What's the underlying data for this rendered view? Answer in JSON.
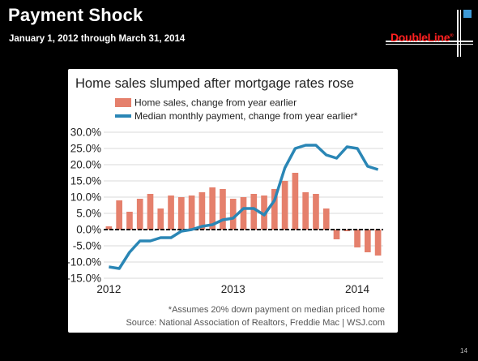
{
  "slide": {
    "title": "Payment Shock",
    "subtitle": "January 1, 2012 through March 31, 2014",
    "page_number": "14"
  },
  "logo": {
    "text": "DoubleLine",
    "registered": "®",
    "text_color": "#ff2020",
    "accent_color": "#3e9ad8"
  },
  "chart_data": {
    "type": "bar",
    "title": "Home sales slumped after mortgage rates rose",
    "legend_position": "top-left",
    "x_tick_labels": [
      "2012",
      "2013",
      "2014"
    ],
    "y_tick_labels": [
      "30.0%",
      "25.0%",
      "20.0%",
      "15.0%",
      "10.0%",
      "5.0%",
      "0.0%",
      "-5.0%",
      "-10.0%",
      "-15.0%"
    ],
    "ylim": [
      -15,
      30
    ],
    "y_ticks": [
      30,
      25,
      20,
      15,
      10,
      5,
      0,
      -5,
      -10,
      -15
    ],
    "grid": true,
    "x": [
      "2012-01",
      "2012-02",
      "2012-03",
      "2012-04",
      "2012-05",
      "2012-06",
      "2012-07",
      "2012-08",
      "2012-09",
      "2012-10",
      "2012-11",
      "2012-12",
      "2013-01",
      "2013-02",
      "2013-03",
      "2013-04",
      "2013-05",
      "2013-06",
      "2013-07",
      "2013-08",
      "2013-09",
      "2013-10",
      "2013-11",
      "2013-12",
      "2014-01",
      "2014-02",
      "2014-03"
    ],
    "series": [
      {
        "name": "Home sales, change from year earlier",
        "kind": "bar",
        "color": "#e5806c",
        "values": [
          1.0,
          9.0,
          5.5,
          9.5,
          11.0,
          6.5,
          10.5,
          10.0,
          10.5,
          11.5,
          13.0,
          12.5,
          9.5,
          10.0,
          11.0,
          10.5,
          12.5,
          15.0,
          17.5,
          11.5,
          11.0,
          6.5,
          -3.0,
          -0.5,
          -5.5,
          -7.0,
          -8.0
        ]
      },
      {
        "name": "Median monthly payment, change from year earlier*",
        "kind": "line",
        "color": "#2a86b5",
        "values": [
          -11.5,
          -12.0,
          -7.0,
          -3.5,
          -3.5,
          -2.5,
          -2.5,
          -0.5,
          0.0,
          1.0,
          1.5,
          3.0,
          3.5,
          6.5,
          6.5,
          4.5,
          9.0,
          19.0,
          25.0,
          26.0,
          26.0,
          23.0,
          22.0,
          25.5,
          25.0,
          19.5,
          18.5
        ]
      }
    ],
    "footnote": "*Assumes 20% down payment on median priced home",
    "source": "Source: National Association of Realtors, Freddie Mac  |  WSJ.com"
  }
}
